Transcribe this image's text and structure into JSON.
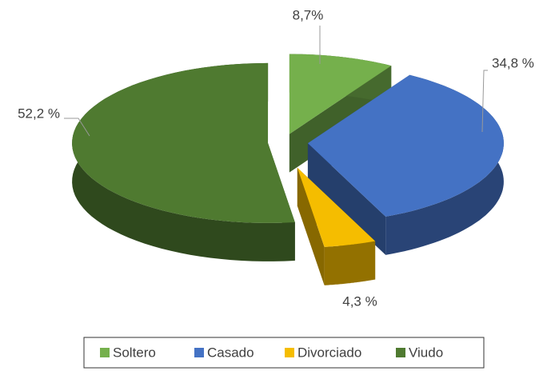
{
  "chart_data": {
    "type": "pie3d",
    "categories": [
      "Soltero",
      "Casado",
      "Divorciado",
      "Viudo"
    ],
    "values": [
      8.7,
      34.8,
      4.3,
      52.2
    ],
    "value_labels": [
      "8,7%",
      "34,8 %",
      "4,3 %",
      "52,2 %"
    ],
    "colors": [
      "#75b04c",
      "#4472c4",
      "#f5bd00",
      "#4f7a30"
    ],
    "legend": "bottom"
  }
}
